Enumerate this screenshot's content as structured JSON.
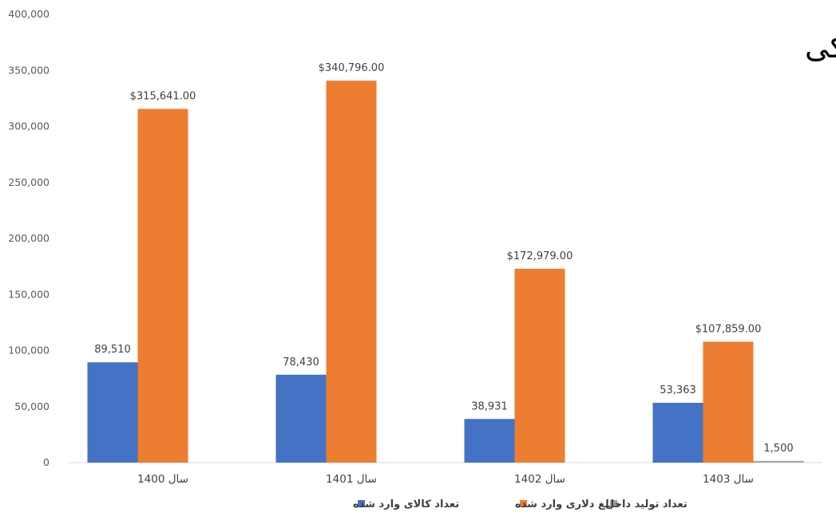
{
  "chart_data": {
    "type": "bar",
    "title": "آمار بازرگانی گوشی پزشکی",
    "categories": [
      "سال 1400",
      "سال 1401",
      "سال 1402",
      "سال 1403"
    ],
    "series": [
      {
        "name": "تعداد کالای وارد شده",
        "color": "#4472C4",
        "values": [
          89510,
          78430,
          38931,
          53363
        ],
        "labels": [
          "89,510",
          "78,430",
          "38,931",
          "53,363"
        ]
      },
      {
        "name": "مبلغ دلاری وارد شده",
        "color": "#ED7D31",
        "values": [
          315641,
          340796,
          172979,
          107859
        ],
        "labels": [
          "$315,641.00",
          "$340,796.00",
          "$172,979.00",
          "$107,859.00"
        ]
      },
      {
        "name": "تعداد تولید داخل",
        "color": "#A5A5A5",
        "values": [
          null,
          null,
          null,
          1500
        ],
        "labels": [
          null,
          null,
          null,
          "1,500"
        ]
      }
    ],
    "ylim": [
      0,
      400000
    ],
    "yticks": [
      0,
      50000,
      100000,
      150000,
      200000,
      250000,
      300000,
      350000,
      400000
    ],
    "ytick_labels": [
      "0",
      "50,000",
      "100,000",
      "150,000",
      "200,000",
      "250,000",
      "300,000",
      "350,000",
      "400,000"
    ],
    "grid": false,
    "legend_position": "bottom"
  }
}
